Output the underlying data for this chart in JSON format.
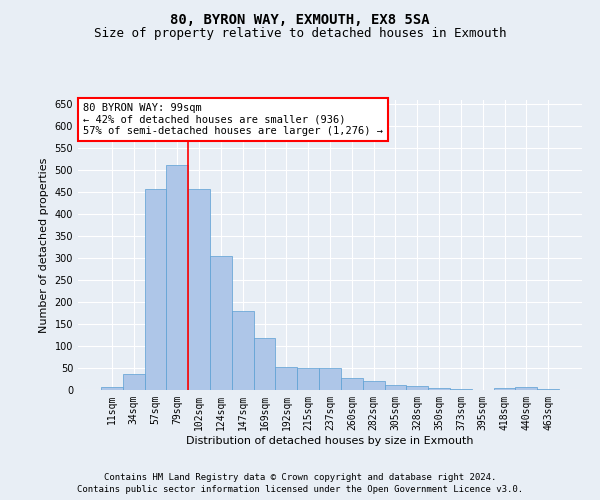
{
  "title1": "80, BYRON WAY, EXMOUTH, EX8 5SA",
  "title2": "Size of property relative to detached houses in Exmouth",
  "xlabel": "Distribution of detached houses by size in Exmouth",
  "ylabel": "Number of detached properties",
  "footnote1": "Contains HM Land Registry data © Crown copyright and database right 2024.",
  "footnote2": "Contains public sector information licensed under the Open Government Licence v3.0.",
  "categories": [
    "11sqm",
    "34sqm",
    "57sqm",
    "79sqm",
    "102sqm",
    "124sqm",
    "147sqm",
    "169sqm",
    "192sqm",
    "215sqm",
    "237sqm",
    "260sqm",
    "282sqm",
    "305sqm",
    "328sqm",
    "350sqm",
    "373sqm",
    "395sqm",
    "418sqm",
    "440sqm",
    "463sqm"
  ],
  "values": [
    7,
    36,
    457,
    512,
    457,
    305,
    180,
    118,
    52,
    50,
    50,
    27,
    20,
    12,
    8,
    4,
    2,
    1,
    5,
    6,
    3
  ],
  "bar_color": "#aec6e8",
  "bar_edge_color": "#5a9fd4",
  "annotation_text_line1": "80 BYRON WAY: 99sqm",
  "annotation_text_line2": "← 42% of detached houses are smaller (936)",
  "annotation_text_line3": "57% of semi-detached houses are larger (1,276) →",
  "annotation_box_color": "white",
  "annotation_box_edge_color": "red",
  "vline_color": "red",
  "vline_x_index": 4,
  "ylim": [
    0,
    660
  ],
  "yticks": [
    0,
    50,
    100,
    150,
    200,
    250,
    300,
    350,
    400,
    450,
    500,
    550,
    600,
    650
  ],
  "background_color": "#e8eef5",
  "plot_bg_color": "#e8eef5",
  "grid_color": "white",
  "title_fontsize": 10,
  "subtitle_fontsize": 9,
  "label_fontsize": 8,
  "tick_fontsize": 7,
  "footnote_fontsize": 6.5
}
